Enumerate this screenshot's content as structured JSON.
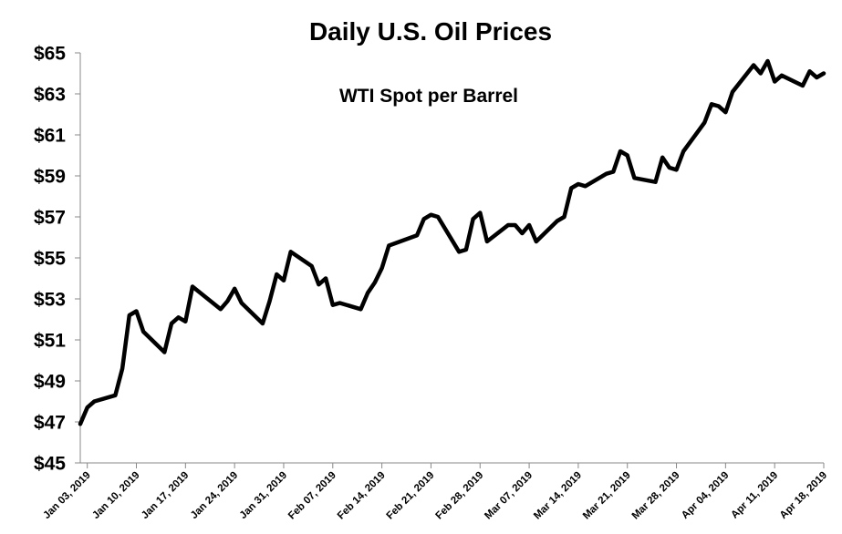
{
  "chart_data": {
    "type": "line",
    "title": "Daily U.S. Oil Prices",
    "subtitle": "WTI Spot per Barrel",
    "xlabel": "",
    "ylabel": "",
    "ylim": [
      45,
      65
    ],
    "y_ticks": [
      "$45",
      "$47",
      "$49",
      "$51",
      "$53",
      "$55",
      "$57",
      "$59",
      "$61",
      "$63",
      "$65"
    ],
    "x_ticks": [
      "Jan 03, 2019",
      "Jan 10, 2019",
      "Jan 17, 2019",
      "Jan 24, 2019",
      "Jan 31, 2019",
      "Feb 07, 2019",
      "Feb 14, 2019",
      "Feb 21, 2019",
      "Feb 28, 2019",
      "Mar 07, 2019",
      "Mar 14, 2019",
      "Mar 21, 2019",
      "Mar 28, 2019",
      "Apr 04, 2019",
      "Apr 11, 2019",
      "Apr 18, 2019"
    ],
    "grid": false,
    "series": [
      {
        "color": "#000000",
        "x": [
          "2019-01-02",
          "2019-01-03",
          "2019-01-04",
          "2019-01-07",
          "2019-01-08",
          "2019-01-09",
          "2019-01-10",
          "2019-01-11",
          "2019-01-14",
          "2019-01-15",
          "2019-01-16",
          "2019-01-17",
          "2019-01-18",
          "2019-01-22",
          "2019-01-23",
          "2019-01-24",
          "2019-01-25",
          "2019-01-28",
          "2019-01-29",
          "2019-01-30",
          "2019-01-31",
          "2019-02-01",
          "2019-02-04",
          "2019-02-05",
          "2019-02-06",
          "2019-02-07",
          "2019-02-08",
          "2019-02-11",
          "2019-02-12",
          "2019-02-13",
          "2019-02-14",
          "2019-02-15",
          "2019-02-19",
          "2019-02-20",
          "2019-02-21",
          "2019-02-22",
          "2019-02-25",
          "2019-02-26",
          "2019-02-27",
          "2019-02-28",
          "2019-03-01",
          "2019-03-04",
          "2019-03-05",
          "2019-03-06",
          "2019-03-07",
          "2019-03-08",
          "2019-03-11",
          "2019-03-12",
          "2019-03-13",
          "2019-03-14",
          "2019-03-15",
          "2019-03-18",
          "2019-03-19",
          "2019-03-20",
          "2019-03-21",
          "2019-03-22",
          "2019-03-25",
          "2019-03-26",
          "2019-03-27",
          "2019-03-28",
          "2019-03-29",
          "2019-04-01",
          "2019-04-02",
          "2019-04-03",
          "2019-04-04",
          "2019-04-05",
          "2019-04-08",
          "2019-04-09",
          "2019-04-10",
          "2019-04-11",
          "2019-04-12",
          "2019-04-15",
          "2019-04-16",
          "2019-04-17",
          "2019-04-18"
        ],
        "values": [
          46.9,
          47.7,
          48.0,
          48.3,
          49.6,
          52.2,
          52.4,
          51.4,
          50.4,
          51.8,
          52.1,
          51.9,
          53.6,
          52.5,
          52.9,
          53.5,
          52.8,
          51.8,
          52.9,
          54.2,
          53.9,
          55.3,
          54.6,
          53.7,
          54.0,
          52.7,
          52.8,
          52.5,
          53.3,
          53.8,
          54.5,
          55.6,
          56.1,
          56.9,
          57.1,
          57.0,
          55.3,
          55.4,
          56.9,
          57.2,
          55.8,
          56.6,
          56.6,
          56.2,
          56.6,
          55.8,
          56.8,
          57.0,
          58.4,
          58.6,
          58.5,
          59.1,
          59.2,
          60.2,
          60.0,
          58.9,
          58.7,
          59.9,
          59.4,
          59.3,
          60.2,
          61.6,
          62.5,
          62.4,
          62.1,
          63.1,
          64.4,
          64.0,
          64.6,
          63.6,
          63.9,
          63.4,
          64.1,
          63.8,
          64.0
        ]
      }
    ]
  }
}
